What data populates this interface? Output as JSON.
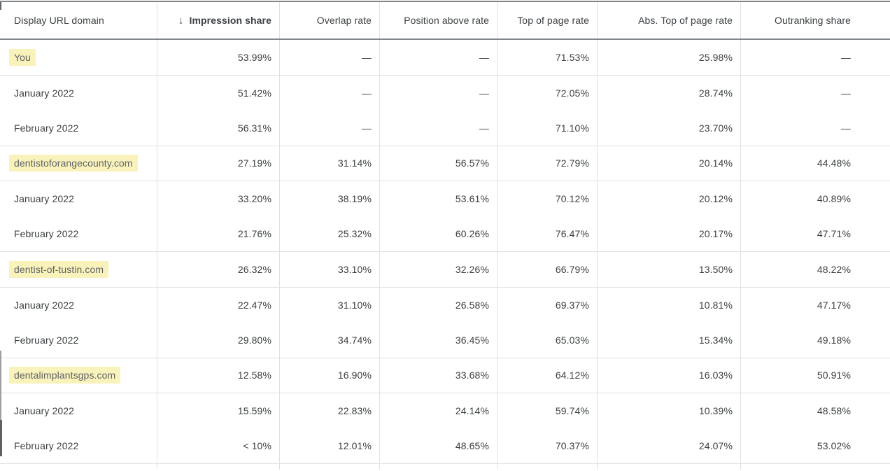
{
  "table": {
    "sort_icon": "↓",
    "columns": [
      {
        "label": "Display URL domain",
        "sorted": false
      },
      {
        "label": "Impression share",
        "sorted": true,
        "sort_direction": "descending"
      },
      {
        "label": "Overlap rate",
        "sorted": false
      },
      {
        "label": "Position above rate",
        "sorted": false
      },
      {
        "label": "Top of page rate",
        "sorted": false
      },
      {
        "label": "Abs. Top of page rate",
        "sorted": false
      },
      {
        "label": "Outranking share",
        "sorted": false
      }
    ],
    "rows": [
      {
        "label": "You",
        "type": "domain",
        "highlighted": true,
        "divider": true,
        "values": [
          "53.99%",
          "—",
          "—",
          "71.53%",
          "25.98%",
          "—"
        ]
      },
      {
        "label": "January 2022",
        "type": "month",
        "highlighted": false,
        "divider": false,
        "values": [
          "51.42%",
          "—",
          "—",
          "72.05%",
          "28.74%",
          "—"
        ]
      },
      {
        "label": "February 2022",
        "type": "month",
        "highlighted": false,
        "divider": true,
        "values": [
          "56.31%",
          "—",
          "—",
          "71.10%",
          "23.70%",
          "—"
        ]
      },
      {
        "label": "dentistoforangecounty.com",
        "type": "domain",
        "highlighted": true,
        "divider": true,
        "values": [
          "27.19%",
          "31.14%",
          "56.57%",
          "72.79%",
          "20.14%",
          "44.48%"
        ]
      },
      {
        "label": "January 2022",
        "type": "month",
        "highlighted": false,
        "divider": false,
        "values": [
          "33.20%",
          "38.19%",
          "53.61%",
          "70.12%",
          "20.12%",
          "40.89%"
        ]
      },
      {
        "label": "February 2022",
        "type": "month",
        "highlighted": false,
        "divider": true,
        "values": [
          "21.76%",
          "25.32%",
          "60.26%",
          "76.47%",
          "20.17%",
          "47.71%"
        ]
      },
      {
        "label": "dentist-of-tustin.com",
        "type": "domain",
        "highlighted": true,
        "divider": true,
        "values": [
          "26.32%",
          "33.10%",
          "32.26%",
          "66.79%",
          "13.50%",
          "48.22%"
        ]
      },
      {
        "label": "January 2022",
        "type": "month",
        "highlighted": false,
        "divider": false,
        "values": [
          "22.47%",
          "31.10%",
          "26.58%",
          "69.37%",
          "10.81%",
          "47.17%"
        ]
      },
      {
        "label": "February 2022",
        "type": "month",
        "highlighted": false,
        "divider": true,
        "values": [
          "29.80%",
          "34.74%",
          "36.45%",
          "65.03%",
          "15.34%",
          "49.18%"
        ]
      },
      {
        "label": "dentalimplantsgps.com",
        "type": "domain",
        "highlighted": true,
        "divider": true,
        "values": [
          "12.58%",
          "16.90%",
          "33.68%",
          "64.12%",
          "16.03%",
          "50.91%"
        ]
      },
      {
        "label": "January 2022",
        "type": "month",
        "highlighted": false,
        "divider": false,
        "values": [
          "15.59%",
          "22.83%",
          "24.14%",
          "59.74%",
          "10.39%",
          "48.58%"
        ]
      },
      {
        "label": "February 2022",
        "type": "month",
        "highlighted": false,
        "divider": true,
        "values": [
          "< 10%",
          "12.01%",
          "48.65%",
          "70.37%",
          "24.07%",
          "53.02%"
        ]
      }
    ]
  },
  "colors": {
    "highlight": "#f9f2ba",
    "row_rule": "#e0e0e0",
    "header_rule": "#81868b",
    "text": "#3c4043",
    "domain_text": "#5f6368"
  }
}
